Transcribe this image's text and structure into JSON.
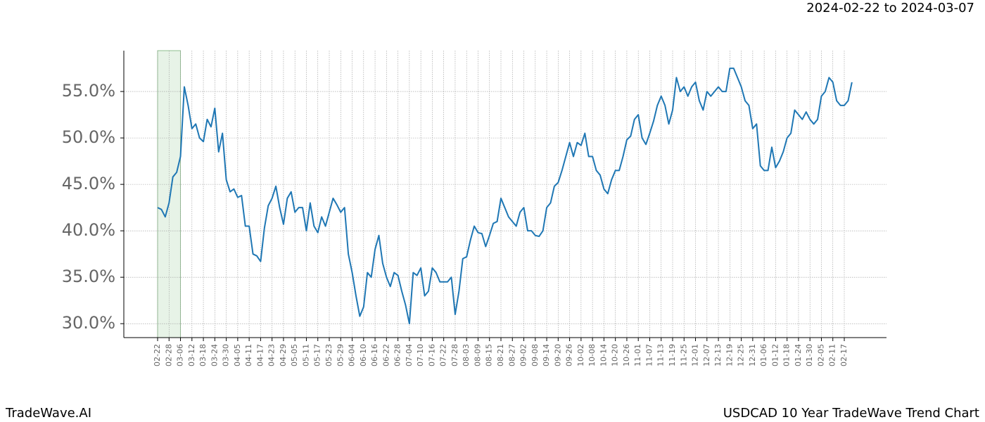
{
  "chart_data": {
    "type": "line",
    "title": "2024-02-22 to 2024-03-07",
    "footer_left": "TradeWave.AI",
    "footer_right": "USDCAD 10 Year TradeWave Trend Chart",
    "color": "#1f77b4",
    "grid": true,
    "shade": {
      "from": "02-22",
      "to": "03-06",
      "color": "#d7ebd7"
    },
    "categories": [
      "02-22",
      "02-24",
      "02-26",
      "02-28",
      "03-02",
      "03-04",
      "03-06",
      "03-08",
      "03-10",
      "03-12",
      "03-14",
      "03-16",
      "03-18",
      "03-20",
      "03-22",
      "03-24",
      "03-26",
      "03-28",
      "03-30",
      "04-01",
      "04-03",
      "04-05",
      "04-07",
      "04-09",
      "04-11",
      "04-13",
      "04-15",
      "04-17",
      "04-19",
      "04-21",
      "04-23",
      "04-25",
      "04-27",
      "04-29",
      "05-01",
      "05-03",
      "05-05",
      "05-07",
      "05-09",
      "05-11",
      "05-13",
      "05-15",
      "05-17",
      "05-19",
      "05-21",
      "05-23",
      "05-25",
      "05-27",
      "05-29",
      "05-31",
      "06-02",
      "06-04",
      "06-06",
      "06-08",
      "06-10",
      "06-12",
      "06-14",
      "06-16",
      "06-18",
      "06-20",
      "06-22",
      "06-24",
      "06-26",
      "06-28",
      "06-30",
      "07-02",
      "07-04",
      "07-06",
      "07-08",
      "07-10",
      "07-12",
      "07-14",
      "07-16",
      "07-18",
      "07-20",
      "07-22",
      "07-24",
      "07-26",
      "07-28",
      "07-30",
      "08-01",
      "08-03",
      "08-05",
      "08-07",
      "08-09",
      "08-11",
      "08-13",
      "08-15",
      "08-17",
      "08-19",
      "08-21",
      "08-23",
      "08-25",
      "08-27",
      "08-29",
      "08-31",
      "09-02",
      "09-04",
      "09-06",
      "09-08",
      "09-10",
      "09-12",
      "09-14",
      "09-16",
      "09-18",
      "09-20",
      "09-22",
      "09-24",
      "09-26",
      "09-28",
      "09-30",
      "10-02",
      "10-04",
      "10-06",
      "10-08",
      "10-10",
      "10-12",
      "10-14",
      "10-16",
      "10-18",
      "10-20",
      "10-22",
      "10-24",
      "10-26",
      "10-28",
      "10-30",
      "11-01",
      "11-03",
      "11-05",
      "11-07",
      "11-09",
      "11-11",
      "11-13",
      "11-15",
      "11-17",
      "11-19",
      "11-21",
      "11-23",
      "11-25",
      "11-27",
      "11-29",
      "12-01",
      "12-03",
      "12-05",
      "12-07",
      "12-09",
      "12-11",
      "12-13",
      "12-15",
      "12-17",
      "12-19",
      "12-21",
      "12-23",
      "12-25",
      "12-27",
      "12-29",
      "12-31",
      "01-02",
      "01-04",
      "01-06",
      "01-08",
      "01-10",
      "01-12",
      "01-14",
      "01-16",
      "01-18",
      "01-20",
      "01-22",
      "01-24",
      "01-26",
      "01-28",
      "01-30",
      "02-01",
      "02-03",
      "02-05",
      "02-07",
      "02-09",
      "02-11",
      "02-13",
      "02-15",
      "02-17",
      "02-19",
      "02-21"
    ],
    "values": [
      42.5,
      42.3,
      41.5,
      43.0,
      45.8,
      46.3,
      48.0,
      55.5,
      53.5,
      51.0,
      51.5,
      50.0,
      49.6,
      52.0,
      51.2,
      53.2,
      48.5,
      50.5,
      45.5,
      44.2,
      44.5,
      43.6,
      43.8,
      40.5,
      40.5,
      37.5,
      37.3,
      36.7,
      40.3,
      42.7,
      43.5,
      44.8,
      42.5,
      40.7,
      43.5,
      44.2,
      42.0,
      42.5,
      42.5,
      40.0,
      43.0,
      40.5,
      39.8,
      41.5,
      40.5,
      42.0,
      43.5,
      42.8,
      42.0,
      42.5,
      37.5,
      35.5,
      33.0,
      30.8,
      31.8,
      35.5,
      35.0,
      38.0,
      39.5,
      36.5,
      35.0,
      34.0,
      35.5,
      35.2,
      33.5,
      32.0,
      30.0,
      35.5,
      35.2,
      36.0,
      33.0,
      33.5,
      36.0,
      35.5,
      34.5,
      34.5,
      34.5,
      35.0,
      31.0,
      33.5,
      37.0,
      37.2,
      39.0,
      40.5,
      39.8,
      39.7,
      38.3,
      39.5,
      40.8,
      41.0,
      43.5,
      42.5,
      41.5,
      41.0,
      40.5,
      42.0,
      42.5,
      40.0,
      40.0,
      39.5,
      39.4,
      40.0,
      42.5,
      43.0,
      44.8,
      45.2,
      46.5,
      48.0,
      49.5,
      48.0,
      49.5,
      49.2,
      50.5,
      48.0,
      48.0,
      46.5,
      46.0,
      44.5,
      44.0,
      45.5,
      46.5,
      46.5,
      48.0,
      49.8,
      50.2,
      52.0,
      52.5,
      50.0,
      49.3,
      50.5,
      51.8,
      53.5,
      54.5,
      53.5,
      51.5,
      53.0,
      56.5,
      55.0,
      55.5,
      54.5,
      55.5,
      56.0,
      54.0,
      53.0,
      55.0,
      54.5,
      55.0,
      55.5,
      55.0,
      55.0,
      57.5,
      57.5,
      56.5,
      55.5,
      54.0,
      53.5,
      51.0,
      51.5,
      47.0,
      46.5,
      46.5,
      49.0,
      46.8,
      47.5,
      48.5,
      50.0,
      50.5,
      53.0,
      52.5,
      52.0,
      52.8,
      52.0,
      51.5,
      52.0,
      54.5,
      55.0,
      56.5,
      56.0,
      54.0,
      53.5,
      53.5,
      54.0,
      56.0
    ],
    "xticks": [
      "02-22",
      "02-28",
      "03-06",
      "03-12",
      "03-18",
      "03-24",
      "03-30",
      "04-05",
      "04-11",
      "04-17",
      "04-23",
      "04-29",
      "05-05",
      "05-11",
      "05-17",
      "05-23",
      "05-29",
      "06-04",
      "06-10",
      "06-16",
      "06-22",
      "06-28",
      "07-04",
      "07-10",
      "07-16",
      "07-22",
      "07-28",
      "08-03",
      "08-09",
      "08-15",
      "08-21",
      "08-27",
      "09-02",
      "09-08",
      "09-14",
      "09-20",
      "09-26",
      "10-02",
      "10-08",
      "10-14",
      "10-20",
      "10-26",
      "11-01",
      "11-07",
      "11-13",
      "11-19",
      "11-25",
      "12-01",
      "12-07",
      "12-13",
      "12-19",
      "12-25",
      "12-31",
      "01-06",
      "01-12",
      "01-18",
      "01-24",
      "01-30",
      "02-05",
      "02-11",
      "02-17"
    ],
    "ylim": [
      28.5,
      59.4
    ],
    "yticks": [
      {
        "value": 30,
        "label": "30.0%"
      },
      {
        "value": 35,
        "label": "35.0%"
      },
      {
        "value": 40,
        "label": "40.0%"
      },
      {
        "value": 45,
        "label": "45.0%"
      },
      {
        "value": 50,
        "label": "50.0%"
      },
      {
        "value": 55,
        "label": "55.0%"
      }
    ]
  }
}
